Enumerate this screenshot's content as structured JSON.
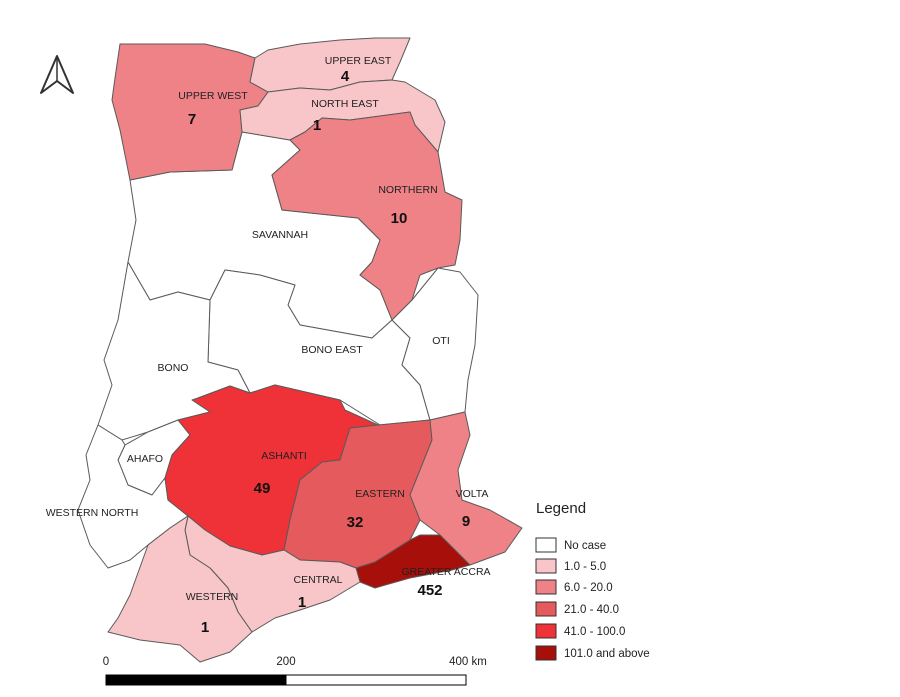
{
  "colors": {
    "no_case": "#ffffff",
    "c1_5": "#f8c6c8",
    "c6_20": "#ee8286",
    "c21_40": "#e55a5c",
    "c41_100": "#ee3237",
    "c101_plus": "#a70f0a",
    "border": "#5a5a5a"
  },
  "regions": {
    "upper_west": {
      "name": "UPPER WEST",
      "count": "7",
      "class": "c6_20"
    },
    "upper_east": {
      "name": "UPPER EAST",
      "count": "4",
      "class": "c1_5"
    },
    "north_east": {
      "name": "NORTH EAST",
      "count": "1",
      "class": "c1_5"
    },
    "northern": {
      "name": "NORTHERN",
      "count": "10",
      "class": "c6_20"
    },
    "savannah": {
      "name": "SAVANNAH",
      "class": "no_case"
    },
    "bono_east": {
      "name": "BONO EAST",
      "class": "no_case"
    },
    "oti": {
      "name": "OTI",
      "class": "no_case"
    },
    "bono": {
      "name": "BONO",
      "class": "no_case"
    },
    "ahafo": {
      "name": "AHAFO",
      "class": "no_case"
    },
    "western_north": {
      "name": "WESTERN NORTH",
      "class": "no_case"
    },
    "ashanti": {
      "name": "ASHANTI",
      "count": "49",
      "class": "c41_100"
    },
    "eastern": {
      "name": "EASTERN",
      "count": "32",
      "class": "c21_40"
    },
    "volta": {
      "name": "VOLTA",
      "count": "9",
      "class": "c6_20"
    },
    "greater_accra": {
      "name": "GREATER ACCRA",
      "count": "452",
      "class": "c101_plus"
    },
    "central": {
      "name": "CENTRAL",
      "count": "1",
      "class": "c1_5"
    },
    "western": {
      "name": "WESTERN",
      "count": "1",
      "class": "c1_5"
    }
  },
  "legend": {
    "title": "Legend",
    "items": [
      {
        "label": "No case",
        "class": "no_case"
      },
      {
        "label": "1.0 - 5.0",
        "class": "c1_5"
      },
      {
        "label": "6.0 - 20.0",
        "class": "c6_20"
      },
      {
        "label": "21.0 - 40.0",
        "class": "c21_40"
      },
      {
        "label": "41.0 - 100.0",
        "class": "c41_100"
      },
      {
        "label": "101.0  and above",
        "class": "c101_plus"
      }
    ]
  },
  "scale_bar": {
    "labels": [
      "0",
      "200",
      "400 km"
    ]
  },
  "north_arrow": {
    "icon": "north-arrow-icon"
  }
}
